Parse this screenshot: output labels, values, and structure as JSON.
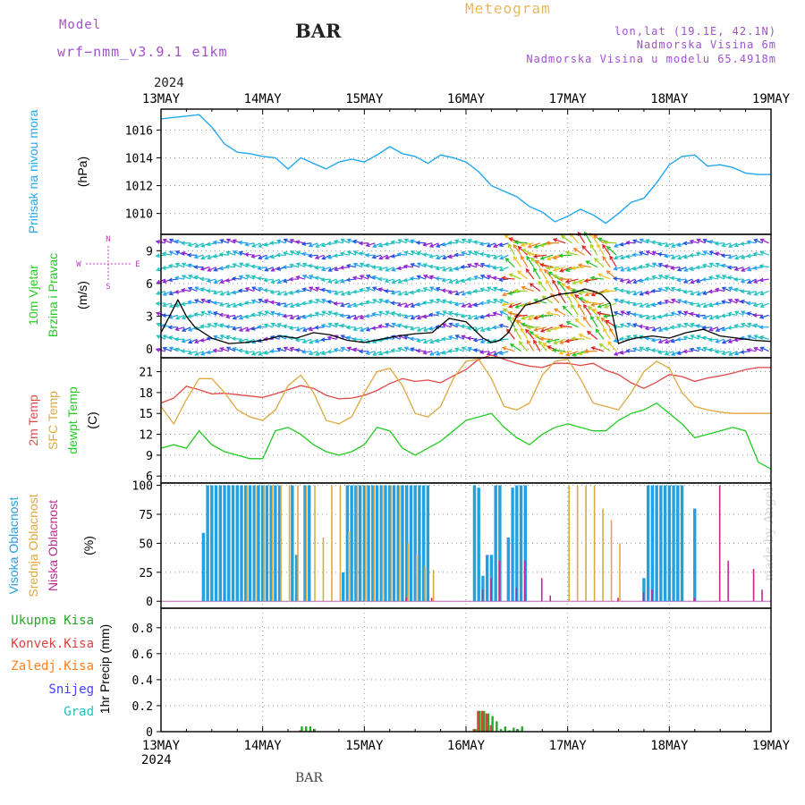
{
  "header": {
    "model_label": "Model",
    "model_name": "wrf−nmm_v3.9.1 e1km",
    "station": "BAR",
    "title": "Meteogram",
    "lonlat": "lon,lat (19.1E, 42.1N)",
    "elevation": "Nadmorska Visina 6m",
    "model_elevation": "Nadmorska Visina u modelu 65.4918m"
  },
  "footer": {
    "station": "BAR",
    "credit": "made by Angel"
  },
  "colors": {
    "pressure": "#22a8ee",
    "wind_speed": "#000000",
    "t2m": "#e04848",
    "sfc": "#e0a840",
    "dewpt": "#22cc22",
    "high_cloud": "#22a0e0",
    "mid_cloud": "#e0a840",
    "low_cloud": "#c02890",
    "total_precip": "#22aa22",
    "conv_precip": "#e04040",
    "frozen_precip": "#ff8020",
    "snow": "#4040ff",
    "graupel": "#20c0c0"
  },
  "chart_data": [
    {
      "type": "line",
      "panel": "pressure",
      "ylabel_side": "Pritisak na nivou mora",
      "ylabel": "(hPa)",
      "ylim": [
        1008.5,
        1017.5
      ],
      "yticks": [
        "1010",
        "1012",
        "1014",
        "1016"
      ],
      "x_unit": "hours since 13MAY 00Z",
      "series": [
        {
          "x": [
            0,
            3,
            6,
            9,
            12,
            15,
            18,
            21,
            24,
            27,
            30,
            33,
            36,
            39,
            42,
            45,
            48,
            51,
            54,
            57,
            60,
            63,
            66,
            69,
            72,
            75,
            78,
            81,
            84,
            87,
            90,
            93,
            96,
            99,
            102,
            105,
            108,
            111,
            114,
            117,
            120,
            123,
            126,
            129,
            132,
            135,
            138,
            141,
            144
          ],
          "values": [
            1016.8,
            1016.9,
            1017.0,
            1017.1,
            1016.2,
            1015.0,
            1014.4,
            1014.3,
            1014.1,
            1014.0,
            1013.2,
            1014.0,
            1013.6,
            1013.2,
            1013.7,
            1013.9,
            1013.7,
            1014.2,
            1014.8,
            1014.3,
            1014.1,
            1013.6,
            1014.2,
            1014.0,
            1013.7,
            1013.0,
            1012.0,
            1011.6,
            1011.2,
            1010.5,
            1010.1,
            1009.4,
            1009.8,
            1010.3,
            1009.9,
            1009.3,
            1010.0,
            1010.8,
            1011.1,
            1012.2,
            1013.5,
            1014.1,
            1014.2,
            1013.4,
            1013.5,
            1013.3,
            1012.9,
            1012.8,
            1012.8
          ]
        }
      ]
    },
    {
      "type": "line",
      "panel": "wind",
      "ylabel_side_1": "10m Vjetar",
      "ylabel_side_2": "Brzina i Pravac",
      "ylabel": "(m/s)",
      "compass": {
        "north": "N",
        "south": "S",
        "west": "W",
        "east": "E"
      },
      "ylim": [
        -0.8,
        10.5
      ],
      "yticks": [
        "0",
        "3",
        "6",
        "9"
      ],
      "series": [
        {
          "name": "10m wind speed",
          "x": [
            0,
            2,
            4,
            6,
            8,
            12,
            16,
            20,
            24,
            28,
            32,
            36,
            40,
            44,
            48,
            52,
            56,
            60,
            64,
            68,
            72,
            76,
            78,
            80,
            82,
            84,
            86,
            88,
            90,
            92,
            94,
            96,
            98,
            100,
            102,
            104,
            106,
            108,
            110,
            112,
            116,
            120,
            124,
            128,
            132,
            136,
            140,
            144
          ],
          "values": [
            1.5,
            3.0,
            4.5,
            3.0,
            2.0,
            1.0,
            0.5,
            0.6,
            0.8,
            1.2,
            1.0,
            1.5,
            1.3,
            0.8,
            0.6,
            0.9,
            1.2,
            1.4,
            1.5,
            2.8,
            2.5,
            1.0,
            0.6,
            0.8,
            1.5,
            3.0,
            4.0,
            4.2,
            4.5,
            4.8,
            5.0,
            5.1,
            5.2,
            5.5,
            5.3,
            5.0,
            4.2,
            0.5,
            0.8,
            1.0,
            1.2,
            1.0,
            1.5,
            1.8,
            1.2,
            1.0,
            0.8,
            0.7
          ]
        }
      ]
    },
    {
      "type": "line",
      "panel": "temperature",
      "ylabel_side_1": "2m Temp",
      "ylabel_side_2": "SFC Temp",
      "ylabel_side_3": "dewpt Temp",
      "ylabel": "(C)",
      "ylim": [
        5,
        23
      ],
      "yticks": [
        "6",
        "9",
        "12",
        "15",
        "18",
        "21"
      ],
      "x": [
        0,
        3,
        6,
        9,
        12,
        15,
        18,
        21,
        24,
        27,
        30,
        33,
        36,
        39,
        42,
        45,
        48,
        51,
        54,
        57,
        60,
        63,
        66,
        69,
        72,
        75,
        78,
        81,
        84,
        87,
        90,
        93,
        96,
        99,
        102,
        105,
        108,
        111,
        114,
        117,
        120,
        123,
        126,
        129,
        132,
        135,
        138,
        141,
        144
      ],
      "series": [
        {
          "name": "2m Temp",
          "values": [
            16.5,
            17.2,
            18.9,
            18.4,
            17.8,
            17.9,
            17.7,
            17.5,
            17.3,
            17.8,
            18.4,
            19.0,
            18.6,
            17.6,
            17.1,
            17.2,
            17.6,
            18.3,
            19.3,
            20.0,
            19.6,
            19.8,
            19.4,
            20.4,
            21.3,
            22.8,
            23.4,
            22.8,
            22.2,
            21.8,
            21.6,
            22.2,
            22.2,
            21.9,
            22.2,
            21.2,
            20.6,
            19.4,
            18.6,
            19.5,
            20.6,
            20.3,
            19.6,
            20.1,
            20.4,
            20.8,
            21.3,
            21.6,
            21.6
          ]
        },
        {
          "name": "SFC Temp",
          "values": [
            16.0,
            13.5,
            17.0,
            20.0,
            20.0,
            18.0,
            15.5,
            14.5,
            14.0,
            15.5,
            19.0,
            20.5,
            18.0,
            14.0,
            13.5,
            14.5,
            18.0,
            21.0,
            21.5,
            19.0,
            15.0,
            14.5,
            16.0,
            20.0,
            22.5,
            22.8,
            20.0,
            16.0,
            15.5,
            16.5,
            20.5,
            22.5,
            22.8,
            20.0,
            16.5,
            16.0,
            15.5,
            18.0,
            21.0,
            22.5,
            21.5,
            18.0,
            16.0,
            15.5,
            15.2,
            15.0,
            15.0,
            15.0,
            15.0
          ]
        },
        {
          "name": "dewpt Temp",
          "values": [
            10.0,
            10.5,
            10.0,
            12.5,
            10.5,
            9.5,
            9.0,
            8.5,
            8.5,
            12.5,
            13.0,
            12.0,
            10.5,
            9.5,
            9.0,
            9.5,
            10.5,
            13.0,
            12.5,
            10.0,
            9.0,
            10.0,
            11.0,
            12.5,
            14.0,
            14.5,
            15.0,
            13.0,
            11.5,
            10.5,
            12.0,
            13.0,
            13.5,
            13.0,
            12.5,
            12.5,
            14.0,
            15.0,
            15.5,
            16.5,
            15.0,
            13.5,
            11.5,
            12.0,
            12.5,
            13.0,
            12.5,
            8.0,
            7.0
          ]
        }
      ]
    },
    {
      "type": "bar",
      "panel": "clouds",
      "ylabel_side_1": "Visoka Oblacnost",
      "ylabel_side_2": "Srednja Oblacnost",
      "ylabel_side_3": "Niska Oblacnost",
      "ylabel": "(%)",
      "ylim": [
        -6,
        102
      ],
      "yticks": [
        "0",
        "25",
        "50",
        "75",
        "100"
      ],
      "series": [
        {
          "name": "Visoka Oblacnost",
          "hours": [
            10,
            11,
            12,
            13,
            14,
            15,
            16,
            17,
            18,
            19,
            20,
            21,
            22,
            23,
            24,
            25,
            26,
            27,
            28,
            31,
            32,
            34,
            35,
            43,
            44,
            45,
            46,
            47,
            48,
            49,
            50,
            51,
            52,
            53,
            54,
            55,
            56,
            57,
            58,
            59,
            60,
            61,
            62,
            63,
            74,
            75,
            76,
            77,
            78,
            79,
            80,
            82,
            83,
            84,
            85,
            86,
            114,
            115,
            116,
            117,
            118,
            119,
            120,
            121,
            122,
            123,
            126
          ],
          "values": [
            59,
            100,
            100,
            100,
            100,
            100,
            100,
            100,
            100,
            100,
            100,
            100,
            100,
            100,
            100,
            100,
            100,
            100,
            100,
            100,
            40,
            100,
            100,
            25,
            100,
            100,
            100,
            100,
            100,
            100,
            100,
            100,
            100,
            100,
            100,
            100,
            100,
            100,
            100,
            100,
            100,
            100,
            100,
            100,
            100,
            98,
            22,
            40,
            40,
            100,
            100,
            55,
            98,
            100,
            100,
            100,
            20,
            100,
            100,
            100,
            100,
            100,
            100,
            100,
            100,
            100,
            80
          ]
        },
        {
          "name": "Srednja Oblacnost",
          "hours": [
            18,
            20,
            22,
            24,
            26,
            28,
            30,
            32,
            34,
            36,
            38,
            40,
            42,
            44,
            46,
            48,
            50,
            52,
            54,
            56,
            58,
            60,
            62,
            64,
            66,
            68,
            70,
            72,
            74,
            76,
            78,
            80,
            82,
            84,
            86,
            88,
            90,
            92,
            94,
            96,
            98,
            100,
            102,
            104,
            106,
            108,
            110,
            112,
            114,
            116,
            118,
            120,
            122,
            124,
            126,
            128,
            130,
            132,
            134,
            136,
            138,
            140,
            142,
            144
          ],
          "values": [
            0,
            100,
            100,
            100,
            100,
            100,
            100,
            100,
            100,
            100,
            55,
            100,
            100,
            60,
            100,
            100,
            100,
            100,
            100,
            100,
            50,
            40,
            30,
            27,
            0,
            0,
            0,
            0,
            0,
            0,
            0,
            0,
            0,
            0,
            0,
            0,
            0,
            0,
            0,
            100,
            100,
            100,
            100,
            80,
            70,
            50,
            0,
            0,
            0,
            0,
            0,
            0,
            0,
            0,
            0,
            0,
            0,
            0,
            0,
            0,
            0,
            0,
            0,
            0
          ]
        },
        {
          "name": "Niska Oblacnost",
          "hours": [
            58,
            64,
            76,
            78,
            80,
            84,
            86,
            90,
            92,
            108,
            114,
            116,
            126,
            132,
            134,
            140,
            142
          ],
          "values": [
            3,
            3,
            10,
            20,
            35,
            12,
            35,
            20,
            5,
            3,
            8,
            10,
            3,
            100,
            35,
            28,
            10
          ]
        }
      ]
    },
    {
      "type": "bar",
      "panel": "precipitation",
      "ylabel_side_1": "Ukupna Kisa",
      "ylabel_side_2": "Konvek.Kisa",
      "ylabel_side_3": "Zaledj.Kisa",
      "ylabel_side_4": "Snijeg",
      "ylabel_side_5": "Grad",
      "ylabel": "1hr Precip (mm)",
      "ylim": [
        0,
        0.95
      ],
      "yticks": [
        "0",
        "0.2",
        "0.4",
        "0.6",
        "0.8"
      ],
      "series": [
        {
          "name": "Ukupna Kisa",
          "hours": [
            33,
            34,
            35,
            36,
            74,
            75,
            76,
            77,
            78,
            79,
            80,
            81,
            82,
            83,
            84,
            85
          ],
          "values": [
            0.04,
            0.04,
            0.04,
            0.02,
            0.02,
            0.16,
            0.16,
            0.14,
            0.12,
            0.08,
            0.02,
            0.04,
            0.01,
            0.03,
            0.02,
            0.04
          ]
        },
        {
          "name": "Konvek.Kisa",
          "hours": [
            33,
            74,
            75,
            76,
            77,
            78
          ],
          "values": [
            0.01,
            0.02,
            0.16,
            0.16,
            0.14,
            0.05
          ]
        }
      ]
    }
  ],
  "x_axis": {
    "year": "2024",
    "labels": [
      "13MAY",
      "14MAY",
      "15MAY",
      "16MAY",
      "17MAY",
      "18MAY",
      "19MAY"
    ]
  }
}
